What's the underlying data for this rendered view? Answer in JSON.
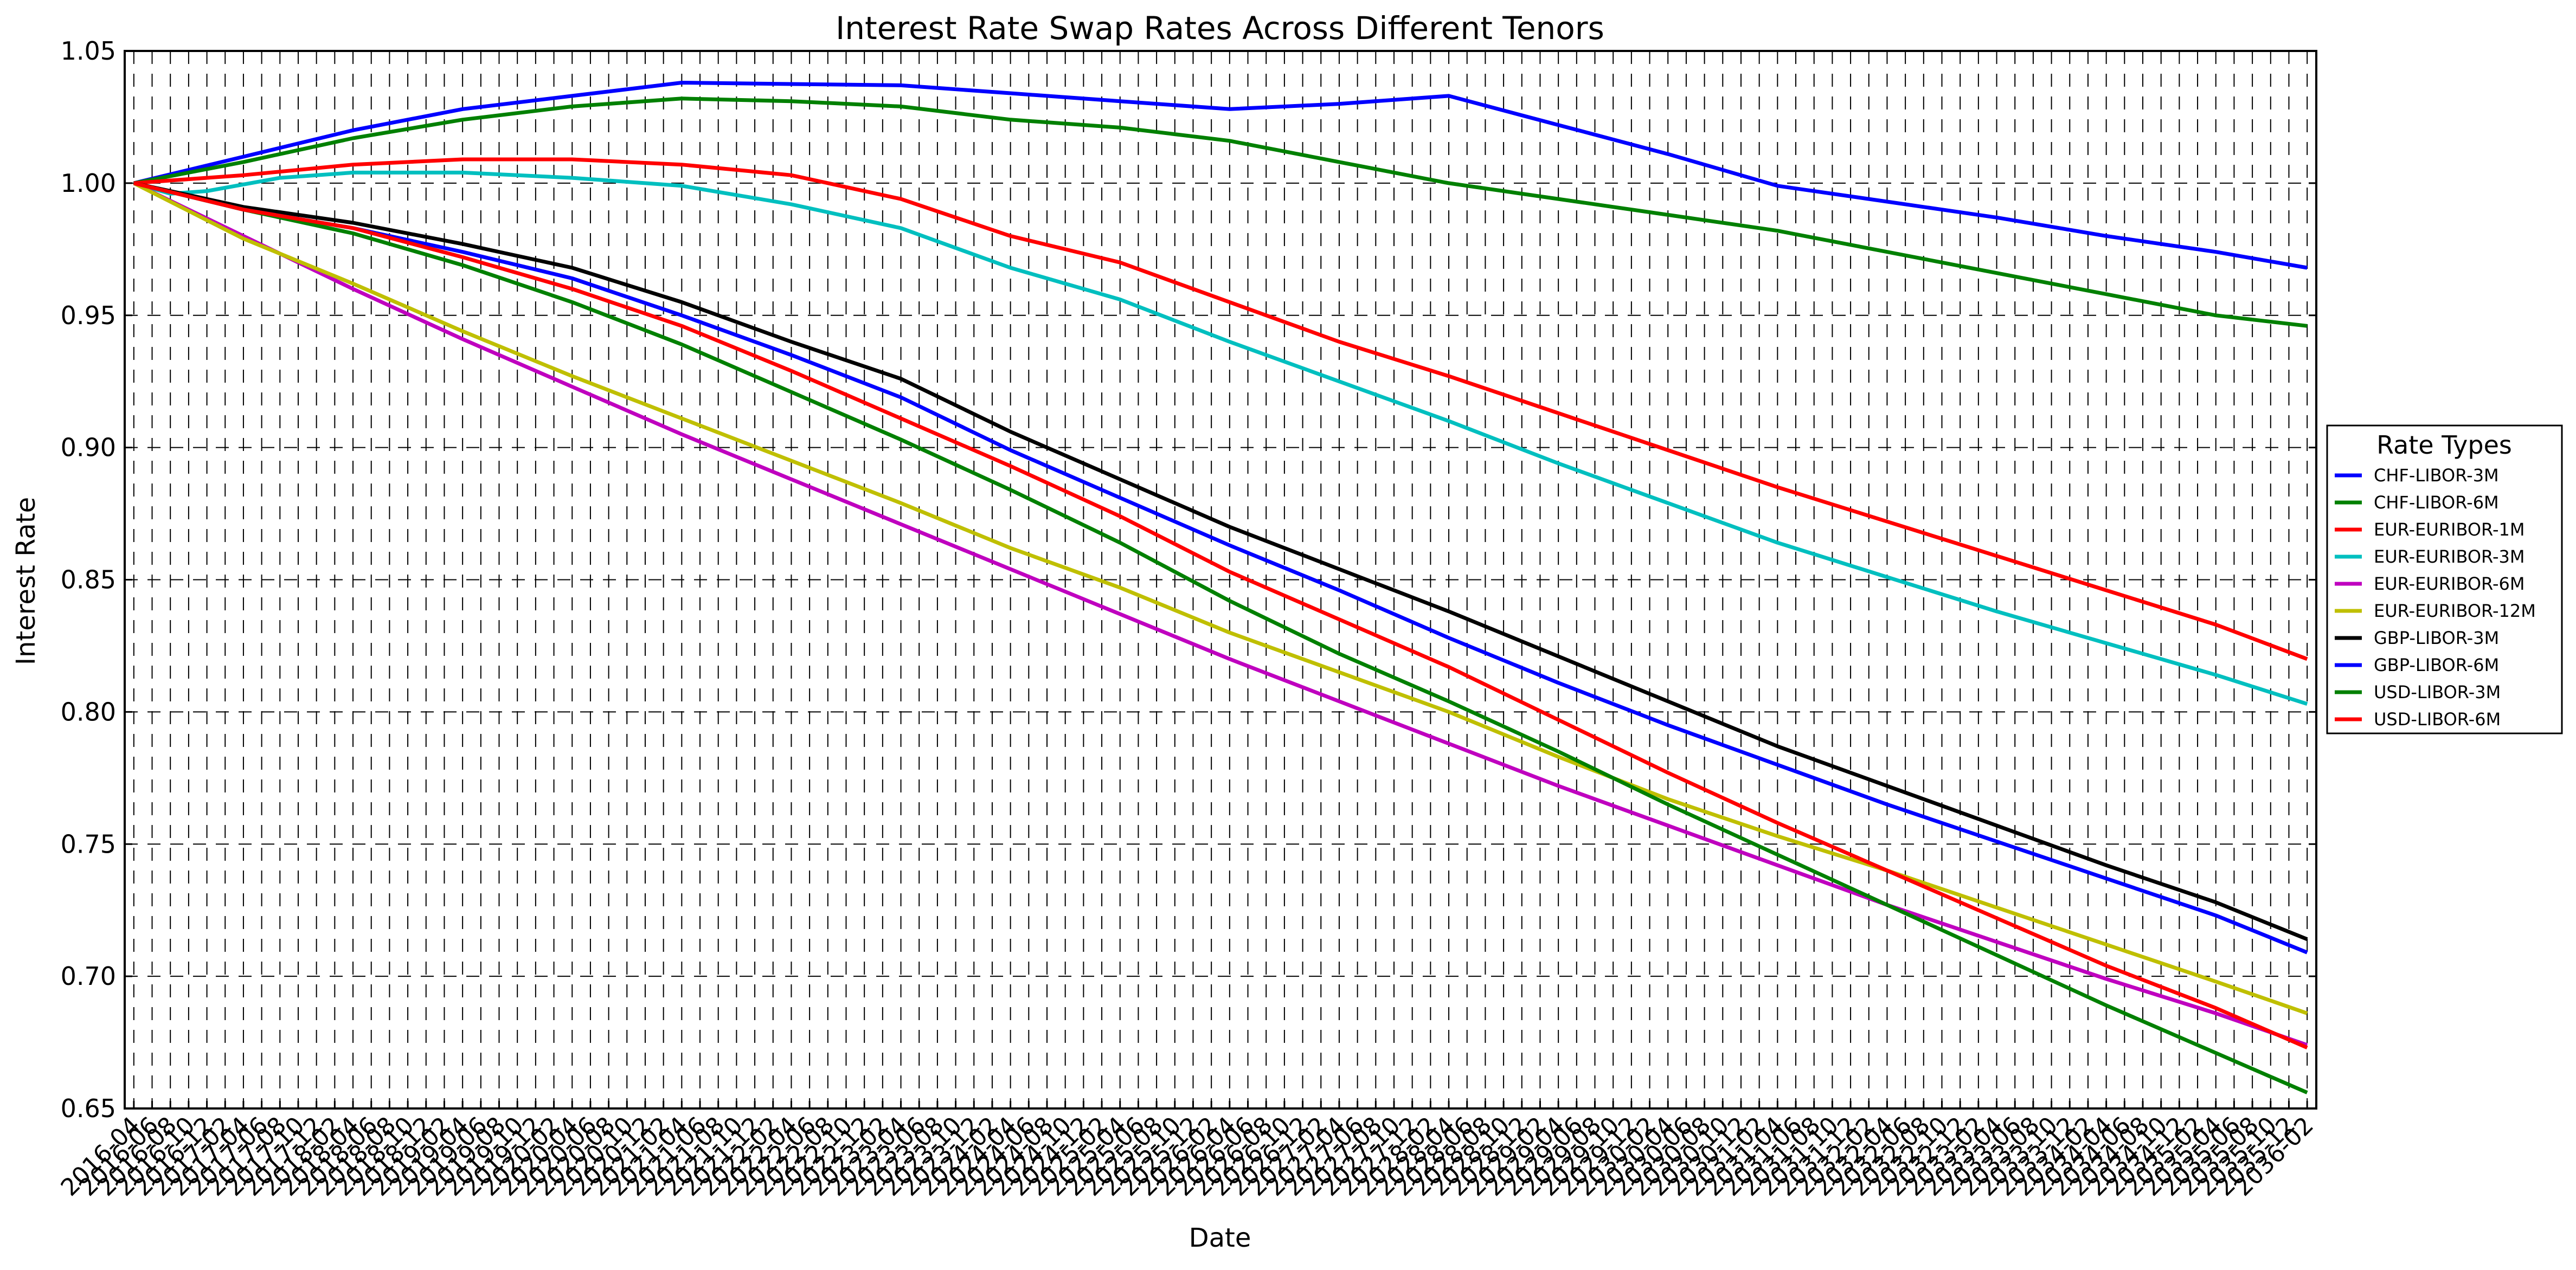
{
  "chart_data": {
    "type": "line",
    "title": "Interest Rate Swap Rates Across Different Tenors",
    "xlabel": "Date",
    "ylabel": "Interest Rate",
    "ylim": [
      0.65,
      1.05
    ],
    "yticks": [
      "0.65",
      "0.70",
      "0.75",
      "0.80",
      "0.85",
      "0.90",
      "0.95",
      "1.00",
      "1.05"
    ],
    "grid": true,
    "legend_title": "Rate Types",
    "legend_position": "right, outside plot",
    "x_range": [
      "2016-04",
      "2036-02"
    ],
    "x_tick_step_months": 2,
    "x": [
      "2016-04",
      "2018-04",
      "2020-04",
      "2022-04",
      "2024-04",
      "2026-04",
      "2028-04",
      "2030-04",
      "2032-04",
      "2034-04",
      "2036-02"
    ],
    "series": [
      {
        "name": "CHF-LIBOR-3M",
        "color": "#0000ff",
        "points": [
          [
            "2016-04",
            1.0
          ],
          [
            "2017-04",
            1.01
          ],
          [
            "2018-04",
            1.02
          ],
          [
            "2019-04",
            1.028
          ],
          [
            "2020-04",
            1.033
          ],
          [
            "2021-04",
            1.038
          ],
          [
            "2022-04",
            1.0375
          ],
          [
            "2023-04",
            1.037
          ],
          [
            "2024-04",
            1.034
          ],
          [
            "2025-04",
            1.031
          ],
          [
            "2026-04",
            1.028
          ],
          [
            "2027-04",
            1.03
          ],
          [
            "2028-04",
            1.033
          ],
          [
            "2029-04",
            1.022
          ],
          [
            "2030-04",
            1.011
          ],
          [
            "2031-04",
            0.999
          ],
          [
            "2032-04",
            0.993
          ],
          [
            "2033-04",
            0.987
          ],
          [
            "2034-04",
            0.98
          ],
          [
            "2035-04",
            0.974
          ],
          [
            "2036-02",
            0.968
          ]
        ]
      },
      {
        "name": "CHF-LIBOR-6M",
        "color": "#008000",
        "points": [
          [
            "2016-04",
            1.0
          ],
          [
            "2017-04",
            1.008
          ],
          [
            "2018-04",
            1.017
          ],
          [
            "2019-04",
            1.024
          ],
          [
            "2020-04",
            1.029
          ],
          [
            "2021-04",
            1.032
          ],
          [
            "2022-04",
            1.031
          ],
          [
            "2023-04",
            1.029
          ],
          [
            "2024-04",
            1.024
          ],
          [
            "2025-04",
            1.021
          ],
          [
            "2026-04",
            1.016
          ],
          [
            "2027-04",
            1.008
          ],
          [
            "2028-04",
            1.0
          ],
          [
            "2029-04",
            0.994
          ],
          [
            "2030-04",
            0.988
          ],
          [
            "2031-04",
            0.982
          ],
          [
            "2032-04",
            0.974
          ],
          [
            "2033-04",
            0.966
          ],
          [
            "2034-04",
            0.958
          ],
          [
            "2035-04",
            0.95
          ],
          [
            "2036-02",
            0.946
          ]
        ]
      },
      {
        "name": "EUR-EURIBOR-1M",
        "color": "#ff0000",
        "points": [
          [
            "2016-04",
            1.0
          ],
          [
            "2017-04",
            1.003
          ],
          [
            "2018-04",
            1.007
          ],
          [
            "2019-04",
            1.009
          ],
          [
            "2020-04",
            1.009
          ],
          [
            "2021-04",
            1.007
          ],
          [
            "2022-04",
            1.003
          ],
          [
            "2023-04",
            0.994
          ],
          [
            "2024-04",
            0.98
          ],
          [
            "2025-04",
            0.97
          ],
          [
            "2026-04",
            0.955
          ],
          [
            "2027-04",
            0.94
          ],
          [
            "2028-04",
            0.927
          ],
          [
            "2029-04",
            0.913
          ],
          [
            "2030-04",
            0.899
          ],
          [
            "2031-04",
            0.885
          ],
          [
            "2032-04",
            0.872
          ],
          [
            "2033-04",
            0.859
          ],
          [
            "2034-04",
            0.846
          ],
          [
            "2035-04",
            0.833
          ],
          [
            "2036-02",
            0.82
          ]
        ]
      },
      {
        "name": "EUR-EURIBOR-3M",
        "color": "#00bfbf",
        "points": [
          [
            "2016-04",
            1.0
          ],
          [
            "2016-08",
            0.996
          ],
          [
            "2016-12",
            0.997
          ],
          [
            "2017-08",
            1.002
          ],
          [
            "2018-04",
            1.004
          ],
          [
            "2019-04",
            1.004
          ],
          [
            "2020-04",
            1.002
          ],
          [
            "2021-04",
            0.999
          ],
          [
            "2022-04",
            0.992
          ],
          [
            "2023-04",
            0.983
          ],
          [
            "2024-04",
            0.968
          ],
          [
            "2025-04",
            0.956
          ],
          [
            "2026-04",
            0.94
          ],
          [
            "2027-04",
            0.925
          ],
          [
            "2028-04",
            0.91
          ],
          [
            "2029-04",
            0.894
          ],
          [
            "2030-04",
            0.879
          ],
          [
            "2031-04",
            0.864
          ],
          [
            "2032-04",
            0.851
          ],
          [
            "2033-04",
            0.838
          ],
          [
            "2034-04",
            0.826
          ],
          [
            "2035-04",
            0.814
          ],
          [
            "2036-02",
            0.803
          ]
        ]
      },
      {
        "name": "EUR-EURIBOR-6M",
        "color": "#bf00bf",
        "points": [
          [
            "2016-04",
            1.0
          ],
          [
            "2017-04",
            0.98
          ],
          [
            "2018-04",
            0.96
          ],
          [
            "2019-04",
            0.941
          ],
          [
            "2020-04",
            0.923
          ],
          [
            "2021-04",
            0.905
          ],
          [
            "2022-04",
            0.888
          ],
          [
            "2023-04",
            0.871
          ],
          [
            "2024-04",
            0.854
          ],
          [
            "2025-04",
            0.837
          ],
          [
            "2026-04",
            0.82
          ],
          [
            "2027-04",
            0.804
          ],
          [
            "2028-04",
            0.788
          ],
          [
            "2029-04",
            0.772
          ],
          [
            "2030-04",
            0.757
          ],
          [
            "2031-04",
            0.742
          ],
          [
            "2032-04",
            0.727
          ],
          [
            "2033-04",
            0.713
          ],
          [
            "2034-04",
            0.699
          ],
          [
            "2035-04",
            0.686
          ],
          [
            "2036-02",
            0.674
          ]
        ]
      },
      {
        "name": "EUR-EURIBOR-12M",
        "color": "#bfbf00",
        "points": [
          [
            "2016-04",
            1.0
          ],
          [
            "2017-04",
            0.979
          ],
          [
            "2018-04",
            0.962
          ],
          [
            "2019-04",
            0.944
          ],
          [
            "2020-04",
            0.927
          ],
          [
            "2021-04",
            0.911
          ],
          [
            "2022-04",
            0.895
          ],
          [
            "2023-04",
            0.879
          ],
          [
            "2024-04",
            0.862
          ],
          [
            "2025-04",
            0.847
          ],
          [
            "2026-04",
            0.83
          ],
          [
            "2027-04",
            0.815
          ],
          [
            "2028-04",
            0.8
          ],
          [
            "2029-04",
            0.783
          ],
          [
            "2030-04",
            0.767
          ],
          [
            "2031-04",
            0.753
          ],
          [
            "2032-04",
            0.74
          ],
          [
            "2033-04",
            0.726
          ],
          [
            "2034-04",
            0.712
          ],
          [
            "2035-04",
            0.698
          ],
          [
            "2036-02",
            0.686
          ]
        ]
      },
      {
        "name": "GBP-LIBOR-3M",
        "color": "#000000",
        "points": [
          [
            "2016-04",
            1.0
          ],
          [
            "2017-04",
            0.991
          ],
          [
            "2018-04",
            0.985
          ],
          [
            "2019-04",
            0.977
          ],
          [
            "2020-04",
            0.968
          ],
          [
            "2021-04",
            0.955
          ],
          [
            "2022-04",
            0.94
          ],
          [
            "2023-04",
            0.926
          ],
          [
            "2024-04",
            0.906
          ],
          [
            "2025-04",
            0.888
          ],
          [
            "2026-04",
            0.87
          ],
          [
            "2027-04",
            0.854
          ],
          [
            "2028-04",
            0.838
          ],
          [
            "2029-04",
            0.821
          ],
          [
            "2030-04",
            0.804
          ],
          [
            "2031-04",
            0.787
          ],
          [
            "2032-04",
            0.772
          ],
          [
            "2033-04",
            0.757
          ],
          [
            "2034-04",
            0.742
          ],
          [
            "2035-04",
            0.728
          ],
          [
            "2036-02",
            0.714
          ]
        ]
      },
      {
        "name": "GBP-LIBOR-6M",
        "color": "#0000ff",
        "points": [
          [
            "2016-04",
            1.0
          ],
          [
            "2017-04",
            0.99
          ],
          [
            "2018-04",
            0.983
          ],
          [
            "2019-04",
            0.974
          ],
          [
            "2020-04",
            0.964
          ],
          [
            "2021-04",
            0.95
          ],
          [
            "2022-04",
            0.935
          ],
          [
            "2023-04",
            0.919
          ],
          [
            "2024-04",
            0.899
          ],
          [
            "2025-04",
            0.881
          ],
          [
            "2026-04",
            0.863
          ],
          [
            "2027-04",
            0.846
          ],
          [
            "2028-04",
            0.828
          ],
          [
            "2029-04",
            0.811
          ],
          [
            "2030-04",
            0.795
          ],
          [
            "2031-04",
            0.78
          ],
          [
            "2032-04",
            0.765
          ],
          [
            "2033-04",
            0.751
          ],
          [
            "2034-04",
            0.737
          ],
          [
            "2035-04",
            0.723
          ],
          [
            "2036-02",
            0.709
          ]
        ]
      },
      {
        "name": "USD-LIBOR-3M",
        "color": "#008000",
        "points": [
          [
            "2016-04",
            1.0
          ],
          [
            "2017-04",
            0.99
          ],
          [
            "2018-04",
            0.981
          ],
          [
            "2019-04",
            0.969
          ],
          [
            "2020-04",
            0.955
          ],
          [
            "2021-04",
            0.939
          ],
          [
            "2022-04",
            0.921
          ],
          [
            "2023-04",
            0.903
          ],
          [
            "2024-04",
            0.884
          ],
          [
            "2025-04",
            0.864
          ],
          [
            "2026-04",
            0.842
          ],
          [
            "2027-04",
            0.822
          ],
          [
            "2028-04",
            0.804
          ],
          [
            "2029-04",
            0.785
          ],
          [
            "2030-04",
            0.765
          ],
          [
            "2031-04",
            0.746
          ],
          [
            "2032-04",
            0.727
          ],
          [
            "2033-04",
            0.708
          ],
          [
            "2034-04",
            0.689
          ],
          [
            "2035-04",
            0.671
          ],
          [
            "2036-02",
            0.656
          ]
        ]
      },
      {
        "name": "USD-LIBOR-6M",
        "color": "#ff0000",
        "points": [
          [
            "2016-04",
            1.0
          ],
          [
            "2017-04",
            0.99
          ],
          [
            "2018-04",
            0.983
          ],
          [
            "2019-04",
            0.972
          ],
          [
            "2020-04",
            0.96
          ],
          [
            "2021-04",
            0.946
          ],
          [
            "2022-04",
            0.929
          ],
          [
            "2023-04",
            0.911
          ],
          [
            "2024-04",
            0.893
          ],
          [
            "2025-04",
            0.874
          ],
          [
            "2026-04",
            0.853
          ],
          [
            "2027-04",
            0.835
          ],
          [
            "2028-04",
            0.817
          ],
          [
            "2029-04",
            0.797
          ],
          [
            "2030-04",
            0.777
          ],
          [
            "2031-04",
            0.758
          ],
          [
            "2032-04",
            0.74
          ],
          [
            "2033-04",
            0.722
          ],
          [
            "2034-04",
            0.704
          ],
          [
            "2035-04",
            0.688
          ],
          [
            "2036-02",
            0.673
          ]
        ]
      }
    ]
  }
}
